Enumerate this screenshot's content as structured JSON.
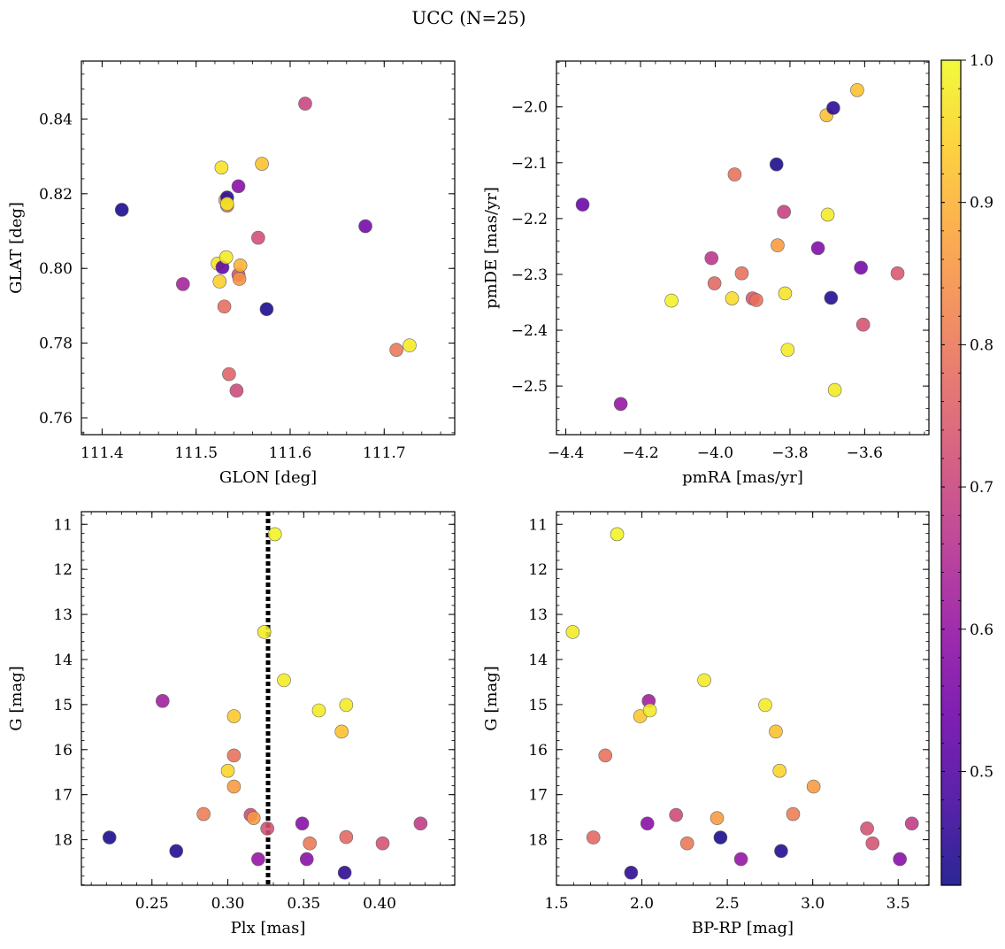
{
  "suptitle": "UCC (N=25)",
  "colorbar": {
    "min": 0.42,
    "max": 1.0,
    "ticks": [
      0.5,
      0.6,
      0.7,
      0.8,
      0.9,
      1.0
    ],
    "cmap": "plasma"
  },
  "chart_data": [
    {
      "type": "scatter",
      "xlabel": "GLON [deg]",
      "ylabel": "GLAT [deg]",
      "xlim": [
        111.378,
        111.775
      ],
      "ylim": [
        0.7555,
        0.8555
      ],
      "xticks": [
        111.4,
        111.5,
        111.6,
        111.7
      ],
      "yticks": [
        0.76,
        0.78,
        0.8,
        0.82,
        0.84
      ],
      "x_decimals": 1,
      "y_decimals": 2,
      "y_inverted": false,
      "points": [
        {
          "x": 111.421,
          "y": 0.8157,
          "c": 0.43
        },
        {
          "x": 111.486,
          "y": 0.7958,
          "c": 0.63
        },
        {
          "x": 111.523,
          "y": 0.8013,
          "c": 0.97
        },
        {
          "x": 111.525,
          "y": 0.7965,
          "c": 0.94
        },
        {
          "x": 111.527,
          "y": 0.827,
          "c": 0.97
        },
        {
          "x": 111.528,
          "y": 0.8003,
          "c": 0.52
        },
        {
          "x": 111.53,
          "y": 0.7898,
          "c": 0.78
        },
        {
          "x": 111.531,
          "y": 0.8183,
          "c": 0.88
        },
        {
          "x": 111.532,
          "y": 0.803,
          "c": 0.98
        },
        {
          "x": 111.533,
          "y": 0.819,
          "c": 0.45
        },
        {
          "x": 111.533,
          "y": 0.8168,
          "c": 0.8
        },
        {
          "x": 111.533,
          "y": 0.8173,
          "c": 0.98
        },
        {
          "x": 111.535,
          "y": 0.7717,
          "c": 0.76
        },
        {
          "x": 111.543,
          "y": 0.7673,
          "c": 0.71
        },
        {
          "x": 111.545,
          "y": 0.822,
          "c": 0.58
        },
        {
          "x": 111.545,
          "y": 0.7983,
          "c": 0.73
        },
        {
          "x": 111.546,
          "y": 0.7972,
          "c": 0.85
        },
        {
          "x": 111.547,
          "y": 0.8008,
          "c": 0.9
        },
        {
          "x": 111.566,
          "y": 0.8082,
          "c": 0.72
        },
        {
          "x": 111.57,
          "y": 0.828,
          "c": 0.92
        },
        {
          "x": 111.575,
          "y": 0.7891,
          "c": 0.43
        },
        {
          "x": 111.616,
          "y": 0.8441,
          "c": 0.7
        },
        {
          "x": 111.68,
          "y": 0.8113,
          "c": 0.55
        },
        {
          "x": 111.713,
          "y": 0.7782,
          "c": 0.8
        },
        {
          "x": 111.727,
          "y": 0.7794,
          "c": 0.98
        }
      ]
    },
    {
      "type": "scatter",
      "xlabel": "pmRA [mas/yr]",
      "ylabel": "pmDE [mas/yr]",
      "xlim": [
        -4.425,
        -3.428
      ],
      "ylim": [
        -2.587,
        -1.918
      ],
      "xticks": [
        -4.4,
        -4.2,
        -4.0,
        -3.8,
        -3.6
      ],
      "yticks": [
        -2.5,
        -2.4,
        -2.3,
        -2.2,
        -2.1,
        -2.0
      ],
      "x_decimals": 1,
      "y_decimals": 1,
      "y_inverted": false,
      "points": [
        {
          "x": -4.355,
          "y": -2.175,
          "c": 0.53
        },
        {
          "x": -4.253,
          "y": -2.532,
          "c": 0.6
        },
        {
          "x": -4.117,
          "y": -2.347,
          "c": 0.99
        },
        {
          "x": -4.01,
          "y": -2.271,
          "c": 0.67
        },
        {
          "x": -4.002,
          "y": -2.316,
          "c": 0.77
        },
        {
          "x": -3.955,
          "y": -2.343,
          "c": 0.96
        },
        {
          "x": -3.948,
          "y": -2.121,
          "c": 0.79
        },
        {
          "x": -3.929,
          "y": -2.298,
          "c": 0.79
        },
        {
          "x": -3.9,
          "y": -2.343,
          "c": 0.74
        },
        {
          "x": -3.89,
          "y": -2.346,
          "c": 0.79
        },
        {
          "x": -3.836,
          "y": -2.103,
          "c": 0.43
        },
        {
          "x": -3.833,
          "y": -2.248,
          "c": 0.86
        },
        {
          "x": -3.816,
          "y": -2.188,
          "c": 0.69
        },
        {
          "x": -3.813,
          "y": -2.334,
          "c": 0.97
        },
        {
          "x": -3.806,
          "y": -2.435,
          "c": 0.98
        },
        {
          "x": -3.725,
          "y": -2.253,
          "c": 0.57
        },
        {
          "x": -3.702,
          "y": -2.015,
          "c": 0.92
        },
        {
          "x": -3.699,
          "y": -2.193,
          "c": 0.98
        },
        {
          "x": -3.69,
          "y": -2.342,
          "c": 0.44
        },
        {
          "x": -3.684,
          "y": -2.002,
          "c": 0.45
        },
        {
          "x": -3.68,
          "y": -2.507,
          "c": 0.98
        },
        {
          "x": -3.61,
          "y": -2.288,
          "c": 0.55
        },
        {
          "x": -3.604,
          "y": -2.39,
          "c": 0.73
        },
        {
          "x": -3.62,
          "y": -1.97,
          "c": 0.92
        },
        {
          "x": -3.512,
          "y": -2.298,
          "c": 0.74
        }
      ]
    },
    {
      "type": "scatter",
      "xlabel": "Plx [mas]",
      "ylabel": "G [mag]",
      "xlim": [
        0.2035,
        0.4495
      ],
      "ylim": [
        10.72,
        19.01
      ],
      "xticks": [
        0.25,
        0.3,
        0.35,
        0.4
      ],
      "yticks": [
        11,
        12,
        13,
        14,
        15,
        16,
        17,
        18
      ],
      "x_decimals": 2,
      "y_decimals": 0,
      "y_inverted": true,
      "vline": {
        "x": 0.3265,
        "style": "dotted"
      },
      "points": [
        {
          "x": 0.222,
          "y": 17.95,
          "c": 0.43
        },
        {
          "x": 0.257,
          "y": 14.92,
          "c": 0.62
        },
        {
          "x": 0.266,
          "y": 18.25,
          "c": 0.44
        },
        {
          "x": 0.284,
          "y": 17.43,
          "c": 0.81
        },
        {
          "x": 0.3,
          "y": 16.47,
          "c": 0.95
        },
        {
          "x": 0.304,
          "y": 15.26,
          "c": 0.93
        },
        {
          "x": 0.304,
          "y": 16.13,
          "c": 0.79
        },
        {
          "x": 0.304,
          "y": 16.82,
          "c": 0.86
        },
        {
          "x": 0.315,
          "y": 17.45,
          "c": 0.71
        },
        {
          "x": 0.317,
          "y": 17.52,
          "c": 0.86
        },
        {
          "x": 0.32,
          "y": 18.43,
          "c": 0.6
        },
        {
          "x": 0.324,
          "y": 13.39,
          "c": 0.98
        },
        {
          "x": 0.326,
          "y": 17.75,
          "c": 0.73
        },
        {
          "x": 0.331,
          "y": 11.22,
          "c": 0.99
        },
        {
          "x": 0.337,
          "y": 14.46,
          "c": 0.98
        },
        {
          "x": 0.349,
          "y": 17.64,
          "c": 0.58
        },
        {
          "x": 0.352,
          "y": 18.43,
          "c": 0.58
        },
        {
          "x": 0.354,
          "y": 18.08,
          "c": 0.8
        },
        {
          "x": 0.36,
          "y": 15.13,
          "c": 0.98
        },
        {
          "x": 0.375,
          "y": 15.6,
          "c": 0.92
        },
        {
          "x": 0.377,
          "y": 18.73,
          "c": 0.45
        },
        {
          "x": 0.378,
          "y": 17.94,
          "c": 0.77
        },
        {
          "x": 0.378,
          "y": 15.01,
          "c": 0.98
        },
        {
          "x": 0.402,
          "y": 18.08,
          "c": 0.73
        },
        {
          "x": 0.427,
          "y": 17.64,
          "c": 0.68
        }
      ]
    },
    {
      "type": "scatter",
      "xlabel": "BP-RP [mag]",
      "ylabel": "G [mag]",
      "xlim": [
        1.5,
        3.68
      ],
      "ylim": [
        10.72,
        19.01
      ],
      "xticks": [
        1.5,
        2.0,
        2.5,
        3.0,
        3.5
      ],
      "yticks": [
        11,
        12,
        13,
        14,
        15,
        16,
        17,
        18
      ],
      "x_decimals": 1,
      "y_decimals": 0,
      "y_inverted": true,
      "points": [
        {
          "x": 1.595,
          "y": 13.39,
          "c": 0.98
        },
        {
          "x": 1.716,
          "y": 17.95,
          "c": 0.77
        },
        {
          "x": 1.786,
          "y": 16.13,
          "c": 0.79
        },
        {
          "x": 1.855,
          "y": 11.22,
          "c": 0.99
        },
        {
          "x": 1.937,
          "y": 18.73,
          "c": 0.45
        },
        {
          "x": 1.99,
          "y": 15.26,
          "c": 0.93
        },
        {
          "x": 2.032,
          "y": 17.64,
          "c": 0.58
        },
        {
          "x": 2.04,
          "y": 14.92,
          "c": 0.62
        },
        {
          "x": 2.047,
          "y": 15.13,
          "c": 0.98
        },
        {
          "x": 2.2,
          "y": 17.45,
          "c": 0.71
        },
        {
          "x": 2.265,
          "y": 18.08,
          "c": 0.8
        },
        {
          "x": 2.365,
          "y": 14.46,
          "c": 0.98
        },
        {
          "x": 2.44,
          "y": 17.52,
          "c": 0.86
        },
        {
          "x": 2.46,
          "y": 17.95,
          "c": 0.43
        },
        {
          "x": 2.58,
          "y": 18.43,
          "c": 0.6
        },
        {
          "x": 2.722,
          "y": 15.01,
          "c": 0.98
        },
        {
          "x": 2.784,
          "y": 15.6,
          "c": 0.92
        },
        {
          "x": 2.806,
          "y": 16.47,
          "c": 0.95
        },
        {
          "x": 2.815,
          "y": 18.25,
          "c": 0.44
        },
        {
          "x": 2.885,
          "y": 17.43,
          "c": 0.81
        },
        {
          "x": 3.005,
          "y": 16.82,
          "c": 0.86
        },
        {
          "x": 3.318,
          "y": 17.75,
          "c": 0.73
        },
        {
          "x": 3.35,
          "y": 18.08,
          "c": 0.73
        },
        {
          "x": 3.51,
          "y": 18.43,
          "c": 0.58
        },
        {
          "x": 3.58,
          "y": 17.64,
          "c": 0.68
        }
      ]
    }
  ]
}
